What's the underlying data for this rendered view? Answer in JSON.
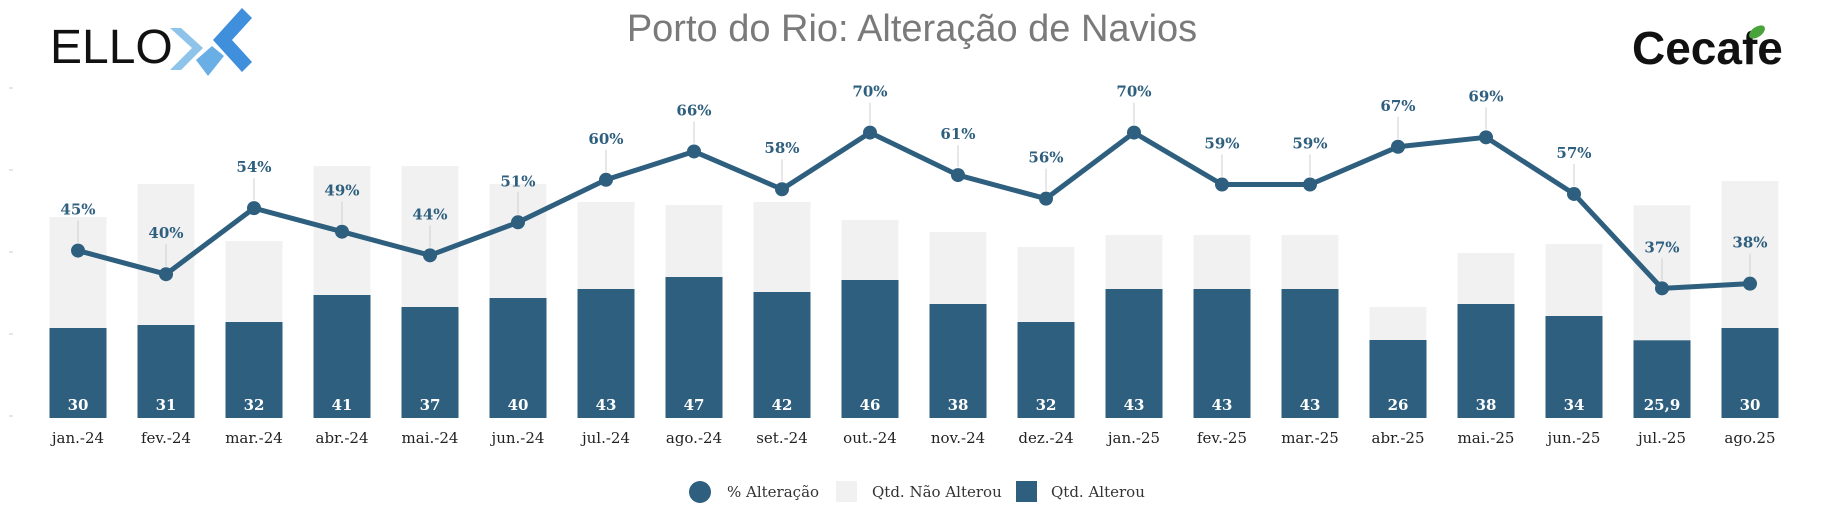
{
  "header": {
    "title": "Porto do Rio: Alteração de Navios",
    "logo_left": "ELLO",
    "logo_right": "Cecafe"
  },
  "colors": {
    "altered": "#2e5f7f",
    "not_altered": "#f1f1f1",
    "line": "#2e5f7f",
    "axis": "#dddddd"
  },
  "chart_data": {
    "type": "bar",
    "title": "Porto do Rio: Alteração de Navios",
    "categories": [
      "jan.-24",
      "fev.-24",
      "mar.-24",
      "abr.-24",
      "mai.-24",
      "jun.-24",
      "jul.-24",
      "ago.-24",
      "set.-24",
      "out.-24",
      "nov.-24",
      "dez.-24",
      "jan.-25",
      "fev.-25",
      "mar.-25",
      "abr.-25",
      "mai.-25",
      "jun.-25",
      "jul.-25",
      "ago.25"
    ],
    "series": [
      {
        "name": "Qtd. Alterou",
        "kind": "bar",
        "stack": "total",
        "values": [
          30,
          31,
          32,
          41,
          37,
          40,
          43,
          47,
          42,
          46,
          38,
          32,
          43,
          43,
          43,
          26,
          38,
          34,
          25.9,
          30
        ],
        "labels": [
          "30",
          "31",
          "32",
          "41",
          "37",
          "40",
          "43",
          "47",
          "42",
          "46",
          "38",
          "32",
          "43",
          "43",
          "43",
          "26",
          "38",
          "34",
          "25,9",
          "30"
        ]
      },
      {
        "name": "Qtd. Não Alterou",
        "kind": "bar",
        "stack": "total",
        "values": [
          37,
          47,
          27,
          43,
          47,
          38,
          29,
          24,
          30,
          20,
          24,
          25,
          18,
          18,
          18,
          11,
          17,
          24,
          45,
          49
        ]
      },
      {
        "name": "% Alteração",
        "kind": "line",
        "axis": "secondary",
        "values": [
          45,
          40,
          54,
          49,
          44,
          51,
          60,
          66,
          58,
          70,
          61,
          56,
          70,
          59,
          59,
          67,
          69,
          57,
          37,
          38
        ],
        "labels": [
          "45%",
          "40%",
          "54%",
          "49%",
          "44%",
          "51%",
          "60%",
          "66%",
          "58%",
          "70%",
          "61%",
          "56%",
          "70%",
          "59%",
          "59%",
          "67%",
          "69%",
          "57%",
          "37%",
          "38%"
        ]
      }
    ],
    "ylim": [
      0,
      100
    ],
    "y2lim": [
      0,
      100
    ],
    "legend": {
      "position": "bottom-center",
      "entries": [
        "% Alteração",
        "Qtd. Não Alterou",
        "Qtd. Alterou"
      ]
    }
  }
}
